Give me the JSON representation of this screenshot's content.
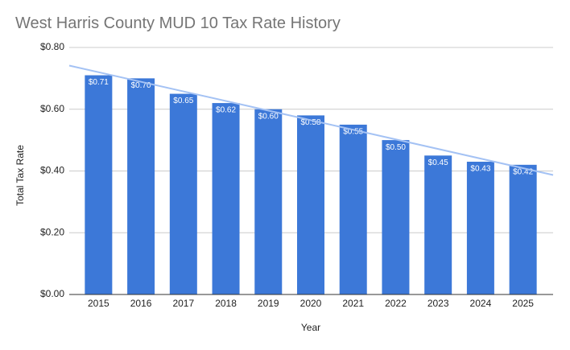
{
  "chart_data": {
    "type": "bar",
    "title": "West Harris County MUD 10 Tax Rate History",
    "x_label": "Year",
    "y_label": "Total Tax Rate",
    "categories": [
      "2015",
      "2016",
      "2017",
      "2018",
      "2019",
      "2020",
      "2021",
      "2022",
      "2023",
      "2024",
      "2025"
    ],
    "values": [
      0.71,
      0.7,
      0.65,
      0.62,
      0.6,
      0.58,
      0.55,
      0.5,
      0.45,
      0.43,
      0.42
    ],
    "value_labels": [
      "$0.71",
      "$0.70",
      "$0.65",
      "$0.62",
      "$0.60",
      "$0.58",
      "$0.55",
      "$0.50",
      "$0.45",
      "$0.43",
      "$0.42"
    ],
    "color": "#3c78d8",
    "trendline": true,
    "trendline_color": "#a4c2f4",
    "ylim": [
      0,
      0.8
    ],
    "yticks": [
      {
        "value": 0,
        "label": "$0.00"
      },
      {
        "value": 0.2,
        "label": "$0.20"
      },
      {
        "value": 0.4,
        "label": "$0.40"
      },
      {
        "value": 0.6,
        "label": "$0.60"
      },
      {
        "value": 0.8,
        "label": "$0.80"
      }
    ],
    "grid": true
  }
}
